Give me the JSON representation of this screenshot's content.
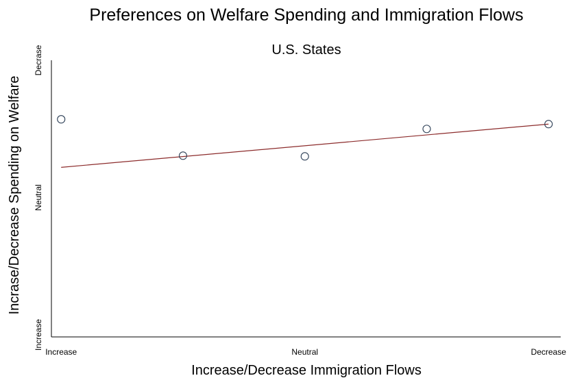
{
  "chart_data": {
    "type": "scatter",
    "title": "Preferences on Welfare Spending and Immigration Flows",
    "subtitle": "U.S. States",
    "xlabel": "Increase/Decrease Immigration Flows",
    "ylabel": "Incrase/Decrease Spending on Welfare",
    "x_ticks": [
      {
        "value": 1,
        "label": "Increase"
      },
      {
        "value": 3,
        "label": "Neutral"
      },
      {
        "value": 5,
        "label": "Decrease"
      }
    ],
    "y_ticks": [
      {
        "value": 1,
        "label": "Increase"
      },
      {
        "value": 3,
        "label": "Neutral"
      },
      {
        "value": 5,
        "label": "Decrase"
      }
    ],
    "xlim": [
      0.92,
      5.1
    ],
    "ylim": [
      0.97,
      5.0
    ],
    "points": [
      {
        "x": 1,
        "y": 4.14
      },
      {
        "x": 2,
        "y": 3.61
      },
      {
        "x": 3,
        "y": 3.6
      },
      {
        "x": 4,
        "y": 4.0
      },
      {
        "x": 5,
        "y": 4.07
      }
    ],
    "trend_line": {
      "x_start": 1,
      "y_start": 3.44,
      "x_end": 5,
      "y_end": 4.07
    },
    "point_color": "#2c3e55",
    "line_color": "#8b2a2a",
    "axis_color": "#000000",
    "grid": false,
    "legend": "none"
  }
}
